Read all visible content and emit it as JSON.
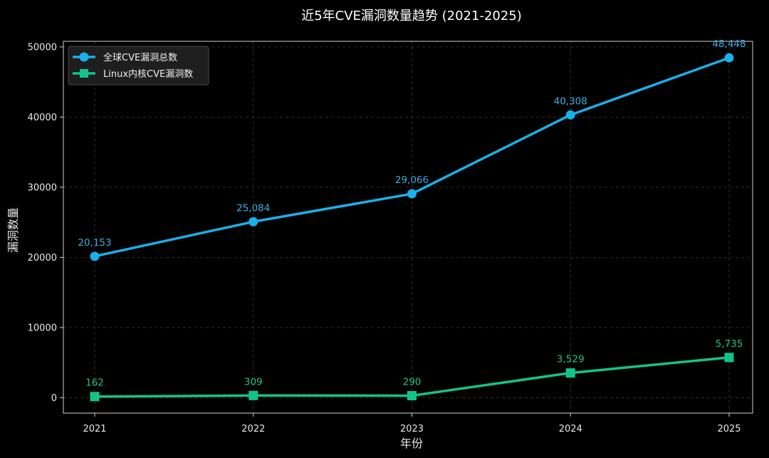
{
  "chart_data": {
    "type": "line",
    "title": "近5年CVE漏洞数量趋势 (2021-2025)",
    "xlabel": "年份",
    "ylabel": "漏洞数量",
    "categories": [
      "2021",
      "2022",
      "2023",
      "2024",
      "2025"
    ],
    "ylim": [
      -2200,
      50800
    ],
    "yticks": [
      0,
      10000,
      20000,
      30000,
      40000,
      50000
    ],
    "ytick_labels": [
      "0",
      "10000",
      "20000",
      "30000",
      "40000",
      "50000"
    ],
    "grid": true,
    "legend_position": "top-left",
    "series": [
      {
        "name": "全球CVE漏洞总数",
        "values": [
          20153,
          25084,
          29066,
          40308,
          48448
        ],
        "labels": [
          "20,153",
          "25,084",
          "29,066",
          "40,308",
          "48,448"
        ],
        "color": "#1ab0ea",
        "label_color": "#3aaee0",
        "marker": "circle"
      },
      {
        "name": "Linux内核CVE漏洞数",
        "values": [
          162,
          309,
          290,
          3529,
          5735
        ],
        "labels": [
          "162",
          "309",
          "290",
          "3,529",
          "5,735"
        ],
        "color": "#12c48c",
        "label_color": "#1cc48e",
        "marker": "square"
      }
    ]
  }
}
